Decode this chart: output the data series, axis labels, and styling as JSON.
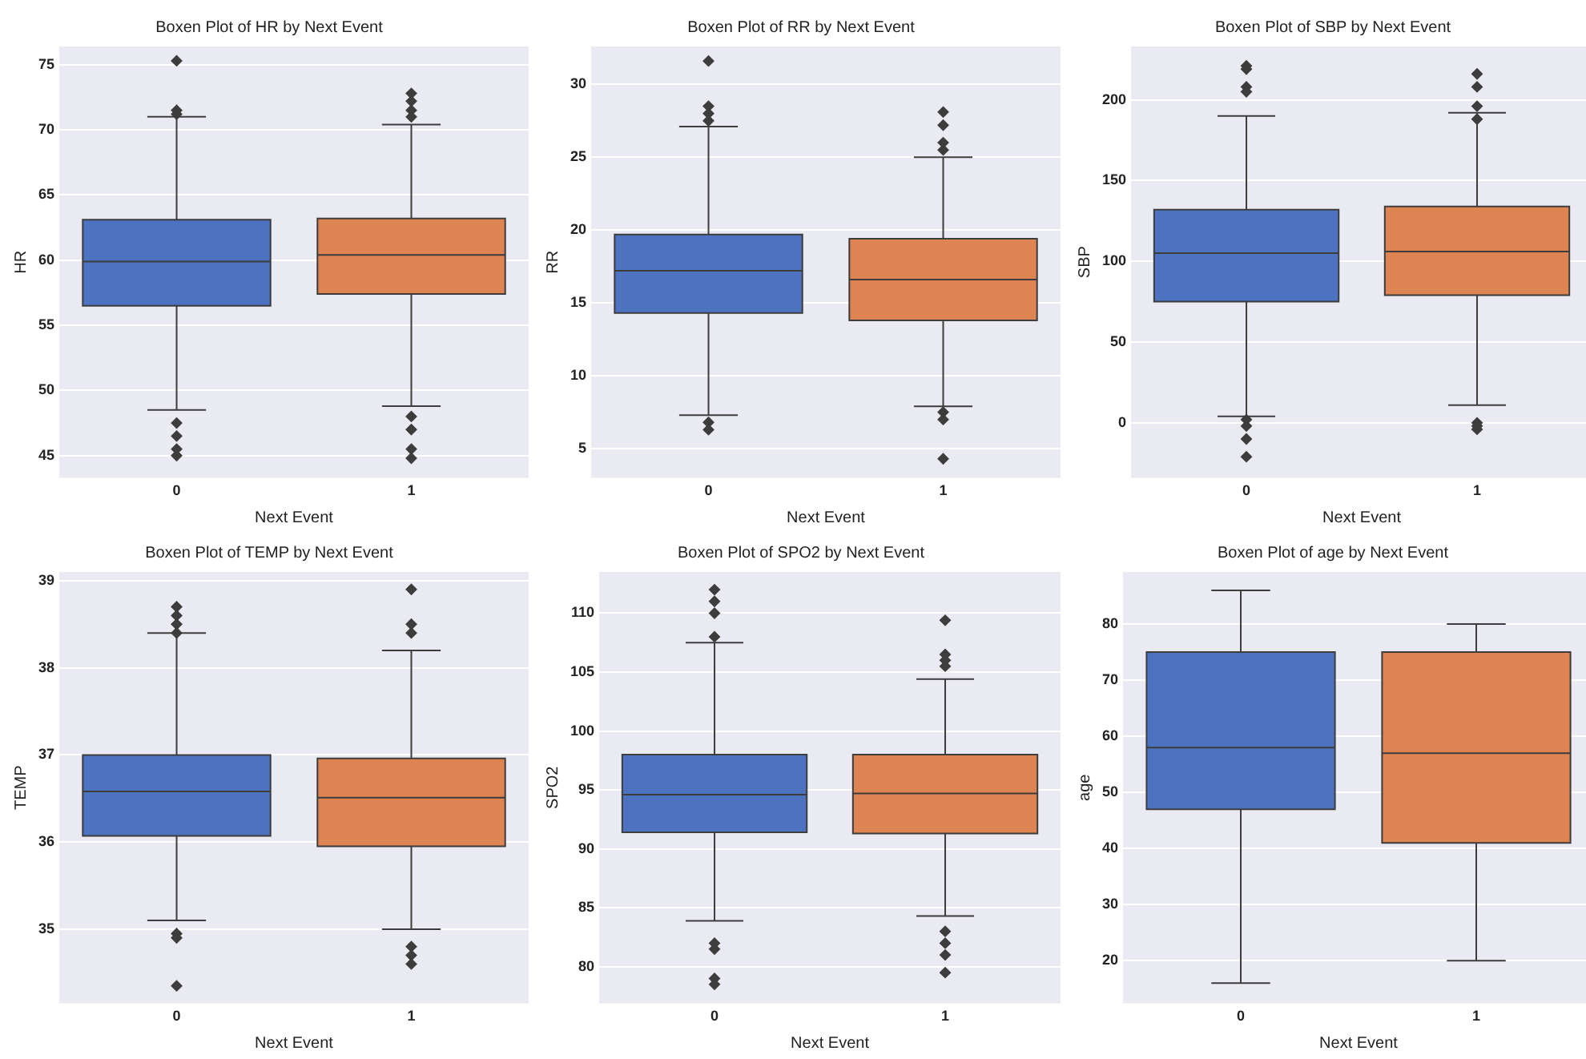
{
  "chart_data": [
    {
      "type": "box",
      "title": "Boxen Plot of HR by Next Event",
      "xlabel": "Next Event",
      "ylabel": "HR",
      "categories": [
        "0",
        "1"
      ],
      "ylim": [
        43.3,
        76.4
      ],
      "yticks": [
        45,
        50,
        55,
        60,
        65,
        70,
        75
      ],
      "grid": "y",
      "legend": false,
      "colors": [
        "#4c72c0",
        "#dd8452"
      ],
      "boxes": [
        {
          "low": 48.5,
          "q1": 56.5,
          "median": 59.9,
          "q3": 63.1,
          "high": 71.0,
          "outliers": [
            75.3,
            71.5,
            71.2,
            47.5,
            46.5,
            45.5,
            45.0
          ]
        },
        {
          "low": 48.8,
          "q1": 57.4,
          "median": 60.4,
          "q3": 63.2,
          "high": 70.4,
          "outliers": [
            72.8,
            72.2,
            71.5,
            71.0,
            48.0,
            47.0,
            45.5,
            44.8
          ]
        }
      ]
    },
    {
      "type": "box",
      "title": "Boxen Plot of RR by Next Event",
      "xlabel": "Next Event",
      "ylabel": "RR",
      "categories": [
        "0",
        "1"
      ],
      "ylim": [
        3.0,
        32.6
      ],
      "yticks": [
        5,
        10,
        15,
        20,
        25,
        30
      ],
      "grid": "y",
      "legend": false,
      "colors": [
        "#4c72c0",
        "#dd8452"
      ],
      "boxes": [
        {
          "low": 7.3,
          "q1": 14.3,
          "median": 17.2,
          "q3": 19.7,
          "high": 27.1,
          "outliers": [
            31.6,
            28.5,
            28.0,
            27.5,
            6.8,
            6.3
          ]
        },
        {
          "low": 7.9,
          "q1": 13.8,
          "median": 16.6,
          "q3": 19.4,
          "high": 25.0,
          "outliers": [
            28.1,
            27.2,
            26.0,
            25.5,
            7.5,
            7.0,
            4.3
          ]
        }
      ]
    },
    {
      "type": "box",
      "title": "Boxen Plot of SBP by Next Event",
      "xlabel": "Next Event",
      "ylabel": "SBP",
      "categories": [
        "0",
        "1"
      ],
      "ylim": [
        -34,
        233
      ],
      "yticks": [
        0,
        50,
        100,
        150,
        200
      ],
      "grid": "y",
      "legend": false,
      "colors": [
        "#4c72c0",
        "#dd8452"
      ],
      "boxes": [
        {
          "low": 4,
          "q1": 75,
          "median": 105,
          "q3": 132,
          "high": 190,
          "outliers": [
            221,
            219,
            208,
            205,
            2,
            -2,
            -10,
            -21
          ]
        },
        {
          "low": 11,
          "q1": 79,
          "median": 106,
          "q3": 134,
          "high": 192,
          "outliers": [
            216,
            208,
            196,
            188,
            0,
            -2,
            -4
          ]
        }
      ]
    },
    {
      "type": "box",
      "title": "Boxen Plot of TEMP by Next Event",
      "xlabel": "Next Event",
      "ylabel": "TEMP",
      "categories": [
        "0",
        "1"
      ],
      "ylim": [
        34.15,
        39.1
      ],
      "yticks": [
        35,
        36,
        37,
        38,
        39
      ],
      "grid": "y",
      "legend": false,
      "colors": [
        "#4c72c0",
        "#dd8452"
      ],
      "boxes": [
        {
          "low": 35.1,
          "q1": 36.07,
          "median": 36.58,
          "q3": 37.0,
          "high": 38.4,
          "outliers": [
            38.7,
            38.6,
            38.5,
            38.4,
            34.95,
            34.9,
            34.35
          ]
        },
        {
          "low": 35.0,
          "q1": 35.95,
          "median": 36.51,
          "q3": 36.96,
          "high": 38.2,
          "outliers": [
            38.9,
            38.5,
            38.4,
            34.8,
            34.7,
            34.6
          ]
        }
      ]
    },
    {
      "type": "box",
      "title": "Boxen Plot of SPO2 by Next Event",
      "xlabel": "Next Event",
      "ylabel": "SPO2",
      "categories": [
        "0",
        "1"
      ],
      "ylim": [
        76.9,
        113.5
      ],
      "yticks": [
        80,
        85,
        90,
        95,
        100,
        105,
        110
      ],
      "grid": "y",
      "legend": false,
      "colors": [
        "#4c72c0",
        "#dd8452"
      ],
      "boxes": [
        {
          "low": 83.9,
          "q1": 91.4,
          "median": 94.6,
          "q3": 98.0,
          "high": 107.5,
          "outliers": [
            112,
            111,
            110,
            108,
            82,
            81.5,
            79,
            78.5
          ]
        },
        {
          "low": 84.3,
          "q1": 91.3,
          "median": 94.7,
          "q3": 98.0,
          "high": 104.4,
          "outliers": [
            109.4,
            106.5,
            106,
            105.5,
            83,
            82,
            81,
            79.5
          ]
        }
      ]
    },
    {
      "type": "box",
      "title": "Boxen Plot of age by Next Event",
      "xlabel": "Next Event",
      "ylabel": "age",
      "categories": [
        "0",
        "1"
      ],
      "ylim": [
        12.4,
        89.3
      ],
      "yticks": [
        20,
        30,
        40,
        50,
        60,
        70,
        80
      ],
      "grid": "y",
      "legend": false,
      "colors": [
        "#4c72c0",
        "#dd8452"
      ],
      "boxes": [
        {
          "low": 16,
          "q1": 47,
          "median": 58,
          "q3": 75,
          "high": 86
        },
        {
          "low": 20,
          "q1": 41,
          "median": 57,
          "q3": 75,
          "high": 80
        }
      ]
    }
  ]
}
